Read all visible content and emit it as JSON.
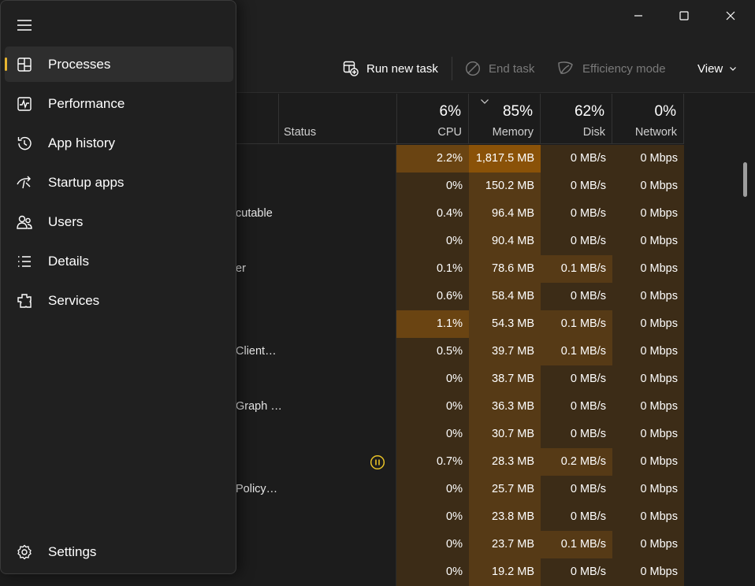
{
  "window": {
    "controls": [
      "minimize",
      "maximize",
      "close"
    ]
  },
  "toolbar": {
    "run_new_task": "Run new task",
    "end_task": "End task",
    "efficiency_mode": "Efficiency mode",
    "view": "View"
  },
  "columns": {
    "status": {
      "label": "Status"
    },
    "cpu": {
      "percent": "6%",
      "label": "CPU"
    },
    "memory": {
      "percent": "85%",
      "label": "Memory"
    },
    "disk": {
      "percent": "62%",
      "label": "Disk"
    },
    "network": {
      "percent": "0%",
      "label": "Network"
    }
  },
  "rows": [
    {
      "name": "",
      "status": "",
      "cpu": "2.2%",
      "memory": "1,817.5 MB",
      "disk": "0 MB/s",
      "network": "0 Mbps"
    },
    {
      "name": "",
      "status": "",
      "cpu": "0%",
      "memory": "150.2 MB",
      "disk": "0 MB/s",
      "network": "0 Mbps"
    },
    {
      "name": "cutable",
      "status": "",
      "cpu": "0.4%",
      "memory": "96.4 MB",
      "disk": "0 MB/s",
      "network": "0 Mbps"
    },
    {
      "name": "",
      "status": "",
      "cpu": "0%",
      "memory": "90.4 MB",
      "disk": "0 MB/s",
      "network": "0 Mbps"
    },
    {
      "name": "er",
      "status": "",
      "cpu": "0.1%",
      "memory": "78.6 MB",
      "disk": "0.1 MB/s",
      "network": "0 Mbps"
    },
    {
      "name": "",
      "status": "",
      "cpu": "0.6%",
      "memory": "58.4 MB",
      "disk": "0 MB/s",
      "network": "0 Mbps"
    },
    {
      "name": "",
      "status": "",
      "cpu": "1.1%",
      "memory": "54.3 MB",
      "disk": "0.1 MB/s",
      "network": "0 Mbps"
    },
    {
      "name": "Client…",
      "status": "",
      "cpu": "0.5%",
      "memory": "39.7 MB",
      "disk": "0.1 MB/s",
      "network": "0 Mbps"
    },
    {
      "name": "",
      "status": "",
      "cpu": "0%",
      "memory": "38.7 MB",
      "disk": "0 MB/s",
      "network": "0 Mbps"
    },
    {
      "name": "Graph …",
      "status": "",
      "cpu": "0%",
      "memory": "36.3 MB",
      "disk": "0 MB/s",
      "network": "0 Mbps"
    },
    {
      "name": "",
      "status": "",
      "cpu": "0%",
      "memory": "30.7 MB",
      "disk": "0 MB/s",
      "network": "0 Mbps"
    },
    {
      "name": "",
      "status": "",
      "cpu": "0.7%",
      "memory": "28.3 MB",
      "disk": "0.2 MB/s",
      "network": "0 Mbps"
    },
    {
      "name": "Policy…",
      "status": "",
      "cpu": "0%",
      "memory": "25.7 MB",
      "disk": "0 MB/s",
      "network": "0 Mbps"
    },
    {
      "name": "",
      "status": "",
      "cpu": "0%",
      "memory": "23.8 MB",
      "disk": "0 MB/s",
      "network": "0 Mbps"
    },
    {
      "name": "",
      "status": "",
      "cpu": "0%",
      "memory": "23.7 MB",
      "disk": "0.1 MB/s",
      "network": "0 Mbps"
    },
    {
      "name": "",
      "status": "",
      "cpu": "0%",
      "memory": "19.2 MB",
      "disk": "0 MB/s",
      "network": "0 Mbps"
    }
  ],
  "nav": {
    "items": [
      {
        "label": "Processes",
        "icon": "processes-icon",
        "active": true
      },
      {
        "label": "Performance",
        "icon": "performance-icon"
      },
      {
        "label": "App history",
        "icon": "app-history-icon"
      },
      {
        "label": "Startup apps",
        "icon": "startup-apps-icon"
      },
      {
        "label": "Users",
        "icon": "users-icon"
      },
      {
        "label": "Details",
        "icon": "details-icon"
      },
      {
        "label": "Services",
        "icon": "services-icon"
      }
    ],
    "settings": "Settings"
  },
  "colors": {
    "accent": "#e8b530",
    "heat_low": "#3c2c17",
    "heat_mid": "#563a16",
    "heat_high": "#6a4412",
    "heat_max": "#8a5208",
    "background": "#1c1c1c",
    "panel": "#202020"
  }
}
